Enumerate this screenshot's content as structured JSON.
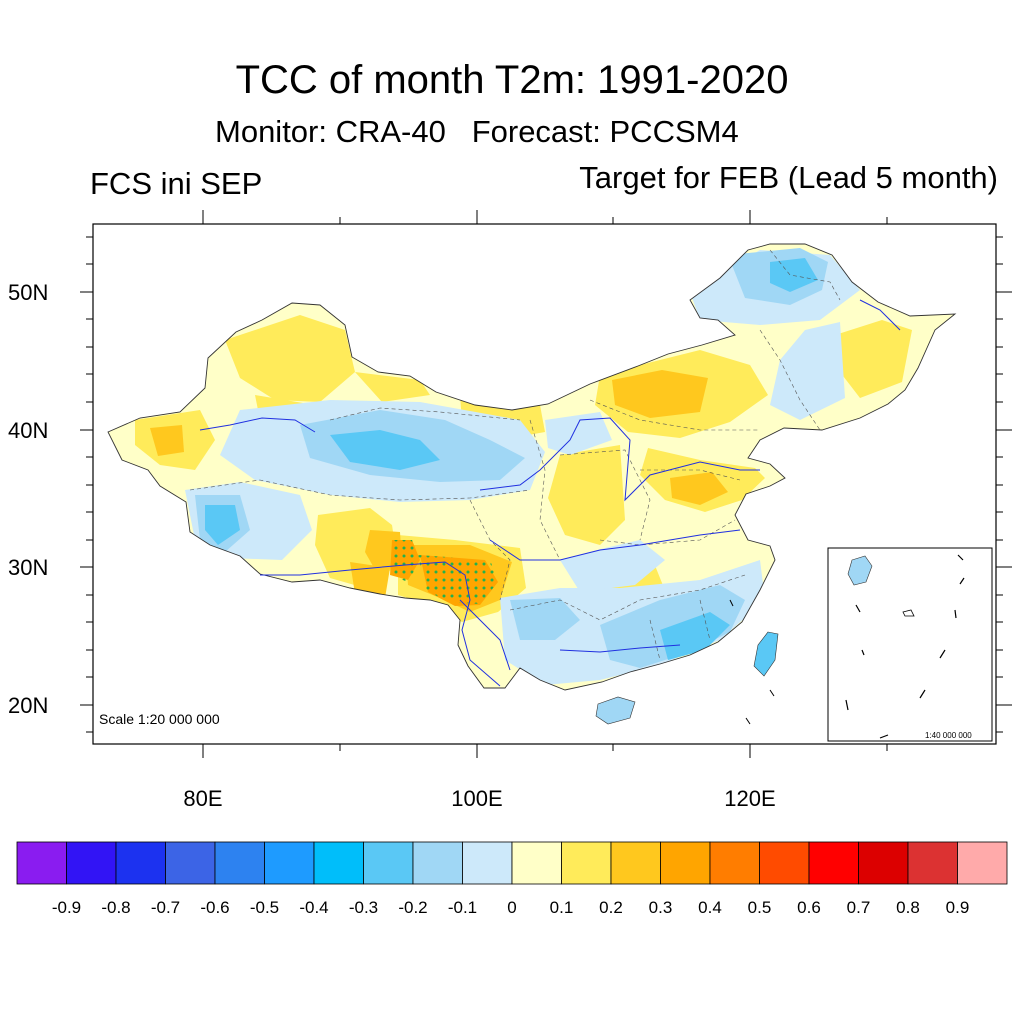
{
  "title": "TCC of month T2m: 1991-2020",
  "subtitle": "Monitor: CRA-40   Forecast: PCCSM4",
  "left_label": "FCS ini SEP",
  "right_label": "Target for FEB (Lead 5 month)",
  "map": {
    "lon_range": [
      72,
      137
    ],
    "lat_range": [
      17,
      55
    ],
    "x_ticks": [
      "80E",
      "100E",
      "120E"
    ],
    "y_ticks": [
      "50N",
      "40N",
      "30N",
      "20N"
    ],
    "scale_label": "Scale 1:20 000 000",
    "inset_scale_label": "1:40 000 000",
    "significance_marker": "green dots",
    "highlight_region": "southeastern Tibet, TCC 0.3-0.4"
  },
  "colorbar": {
    "labels": [
      "-0.9",
      "-0.8",
      "-0.7",
      "-0.6",
      "-0.5",
      "-0.4",
      "-0.3",
      "-0.2",
      "-0.1",
      "0",
      "0.1",
      "0.2",
      "0.3",
      "0.4",
      "0.5",
      "0.6",
      "0.7",
      "0.8",
      "0.9"
    ],
    "colors": [
      "#8a1cf0",
      "#3214f5",
      "#1c32f0",
      "#3c64e6",
      "#2d82f0",
      "#1e9bff",
      "#00befa",
      "#5ac8f5",
      "#a0d7f5",
      "#cde9fa",
      "#ffffc8",
      "#ffeb5a",
      "#ffc81e",
      "#ffa500",
      "#ff7d00",
      "#ff4b00",
      "#ff0000",
      "#dc0000",
      "#dc3232",
      "#ffaaaa"
    ]
  }
}
